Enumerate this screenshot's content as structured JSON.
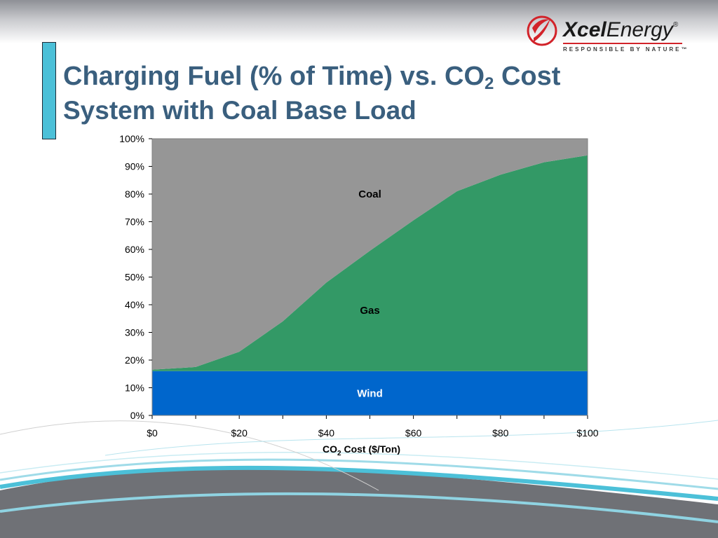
{
  "slide": {
    "title_main": "Charging Fuel (% of Time) vs. CO",
    "title_sub": "2",
    "title_end": " Cost",
    "subtitle": "System with Coal Base Load"
  },
  "logo": {
    "name_bold": "Xcel",
    "name_regular": "Energy",
    "registered": "®",
    "tagline": "RESPONSIBLE BY NATURE™"
  },
  "colors": {
    "title": "#3a5f7e",
    "accent": "#4cc0d8",
    "wind": "#0066cc",
    "gas": "#339966",
    "coal": "#969696"
  },
  "chart_data": {
    "type": "area",
    "stacked": true,
    "x": [
      0,
      10,
      20,
      30,
      40,
      50,
      60,
      70,
      80,
      90,
      100
    ],
    "x_tick_values": [
      0,
      20,
      40,
      60,
      80,
      100
    ],
    "x_tick_labels": [
      "$0",
      "$20",
      "$40",
      "$60",
      "$80",
      "$100"
    ],
    "y_tick_values": [
      0,
      10,
      20,
      30,
      40,
      50,
      60,
      70,
      80,
      90,
      100
    ],
    "y_tick_labels": [
      "0%",
      "10%",
      "20%",
      "30%",
      "40%",
      "50%",
      "60%",
      "70%",
      "80%",
      "90%",
      "100%"
    ],
    "xlim": [
      0,
      100
    ],
    "ylim": [
      0,
      100
    ],
    "xlabel_main": "CO",
    "xlabel_sub": "2",
    "xlabel_end": " Cost ($/Ton)",
    "ylabel": "",
    "grid": false,
    "series": [
      {
        "name": "Wind",
        "values": [
          16,
          16,
          16,
          16,
          16,
          16,
          16,
          16,
          16,
          16,
          16
        ]
      },
      {
        "name": "Gas",
        "values": [
          0.5,
          1.5,
          7,
          18,
          32,
          43.5,
          54.5,
          65,
          71,
          75.5,
          78
        ]
      },
      {
        "name": "Coal",
        "values": [
          83.5,
          82.5,
          77,
          66,
          52,
          40.5,
          29.5,
          19,
          13,
          8.5,
          6
        ]
      }
    ],
    "area_labels": [
      {
        "text": "Wind",
        "x": 50,
        "y": 8,
        "color": "#ffffff"
      },
      {
        "text": "Gas",
        "x": 50,
        "y": 38,
        "color": "#000000"
      },
      {
        "text": "Coal",
        "x": 50,
        "y": 80,
        "color": "#000000"
      }
    ]
  }
}
